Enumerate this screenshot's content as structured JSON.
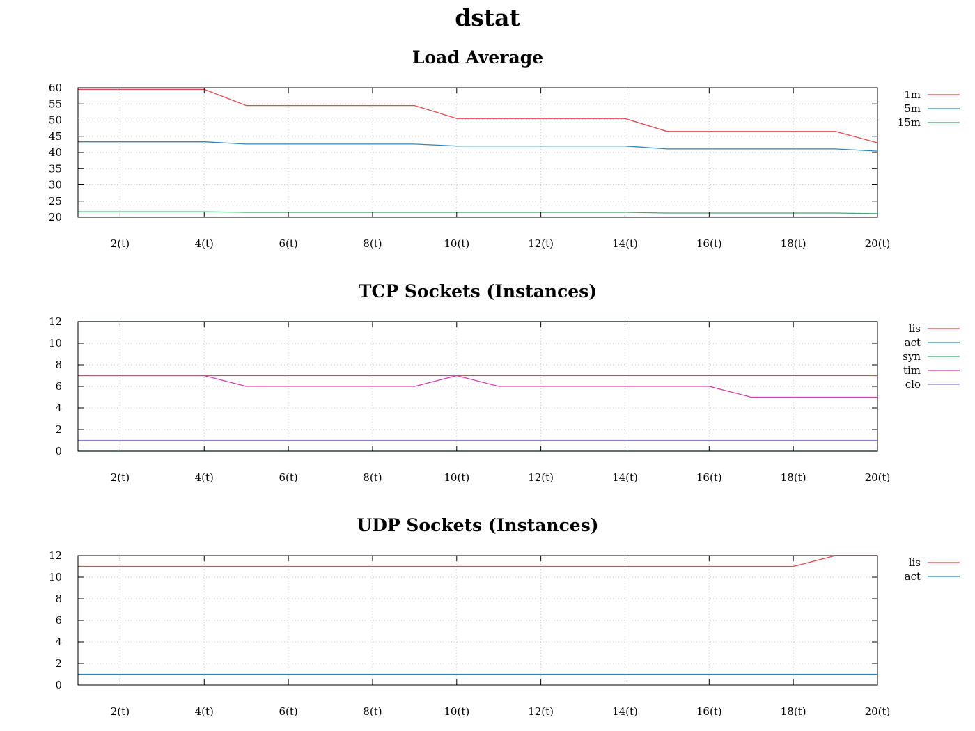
{
  "page": {
    "title": "dstat"
  },
  "colors": {
    "axis": "#000000",
    "grid": "#c8c8c8",
    "red": "#e8484b",
    "blue": "#2e86c1",
    "green": "#3fae68",
    "magenta": "#d63cac",
    "purple": "#8c7fd6",
    "dark_blue": "#1f4e8c",
    "dark_green": "#1e7a3a"
  },
  "chart_data": [
    {
      "type": "line",
      "title": "Load Average",
      "xlabel": "",
      "ylabel": "",
      "xlim": [
        1,
        20
      ],
      "ylim": [
        20,
        60
      ],
      "yticks": [
        20,
        25,
        30,
        35,
        40,
        45,
        50,
        55,
        60
      ],
      "xticks": [
        2,
        4,
        6,
        8,
        10,
        12,
        14,
        16,
        18,
        20
      ],
      "xtick_labels": [
        "2(t)",
        "4(t)",
        "6(t)",
        "8(t)",
        "10(t)",
        "12(t)",
        "14(t)",
        "16(t)",
        "18(t)",
        "20(t)"
      ],
      "ytick_labels": [
        "20",
        "25",
        "30",
        "35",
        "40",
        "45",
        "50",
        "55",
        "60"
      ],
      "grid": true,
      "legend_position": "right",
      "x": [
        1,
        2,
        3,
        4,
        5,
        6,
        7,
        8,
        9,
        10,
        11,
        12,
        13,
        14,
        15,
        16,
        17,
        18,
        19,
        20
      ],
      "series": [
        {
          "name": "1m",
          "color": "#e8484b",
          "values": [
            59.5,
            59.5,
            59.5,
            59.5,
            54.5,
            54.5,
            54.5,
            54.5,
            54.5,
            50.5,
            50.5,
            50.5,
            50.5,
            50.5,
            46.5,
            46.5,
            46.5,
            46.5,
            46.5,
            43
          ]
        },
        {
          "name": "5m",
          "color": "#2e86c1",
          "values": [
            43.3,
            43.3,
            43.3,
            43.3,
            42.6,
            42.6,
            42.6,
            42.6,
            42.6,
            42,
            42,
            42,
            42,
            42,
            41.1,
            41.1,
            41.1,
            41.1,
            41.1,
            40.4
          ]
        },
        {
          "name": "15m",
          "color": "#3fae68",
          "values": [
            21.7,
            21.7,
            21.7,
            21.7,
            21.5,
            21.5,
            21.5,
            21.5,
            21.5,
            21.5,
            21.5,
            21.5,
            21.5,
            21.5,
            21.3,
            21.3,
            21.3,
            21.3,
            21.3,
            21.1
          ]
        }
      ]
    },
    {
      "type": "line",
      "title": "TCP Sockets (Instances)",
      "xlabel": "",
      "ylabel": "",
      "xlim": [
        1,
        20
      ],
      "ylim": [
        0,
        12
      ],
      "yticks": [
        0,
        2,
        4,
        6,
        8,
        10,
        12
      ],
      "xticks": [
        2,
        4,
        6,
        8,
        10,
        12,
        14,
        16,
        18,
        20
      ],
      "xtick_labels": [
        "2(t)",
        "4(t)",
        "6(t)",
        "8(t)",
        "10(t)",
        "12(t)",
        "14(t)",
        "16(t)",
        "18(t)",
        "20(t)"
      ],
      "ytick_labels": [
        "0",
        "2",
        "4",
        "6",
        "8",
        "10",
        "12"
      ],
      "grid": true,
      "legend_position": "right",
      "x": [
        1,
        2,
        3,
        4,
        5,
        6,
        7,
        8,
        9,
        10,
        11,
        12,
        13,
        14,
        15,
        16,
        17,
        18,
        19,
        20
      ],
      "series": [
        {
          "name": "lis",
          "color": "#e8484b",
          "values": [
            7,
            7,
            7,
            7,
            7,
            7,
            7,
            7,
            7,
            7,
            7,
            7,
            7,
            7,
            7,
            7,
            7,
            7,
            7,
            7
          ]
        },
        {
          "name": "act",
          "color": "#2e86c1",
          "line_color": "#1f4e8c",
          "values": [
            12,
            12,
            12,
            12,
            12,
            12,
            12,
            12,
            12,
            12,
            12,
            12,
            12,
            12,
            12,
            12,
            12,
            12,
            12,
            12
          ]
        },
        {
          "name": "syn",
          "color": "#3fae68",
          "line_color": "#1e7a3a",
          "values": [
            0,
            0,
            0,
            0,
            0,
            0,
            0,
            0,
            0,
            0,
            0,
            0,
            0,
            0,
            0,
            0,
            0,
            0,
            0,
            0
          ]
        },
        {
          "name": "tim",
          "color": "#d63cac",
          "values": [
            7,
            7,
            7,
            7,
            6,
            6,
            6,
            6,
            6,
            7,
            6,
            6,
            6,
            6,
            6,
            6,
            5,
            5,
            5,
            5
          ]
        },
        {
          "name": "clo",
          "color": "#8c7fd6",
          "values": [
            1,
            1,
            1,
            1,
            1,
            1,
            1,
            1,
            1,
            1,
            1,
            1,
            1,
            1,
            1,
            1,
            1,
            1,
            1,
            1
          ]
        }
      ]
    },
    {
      "type": "line",
      "title": "UDP Sockets (Instances)",
      "xlabel": "",
      "ylabel": "",
      "xlim": [
        1,
        20
      ],
      "ylim": [
        0,
        12
      ],
      "yticks": [
        0,
        2,
        4,
        6,
        8,
        10,
        12
      ],
      "xticks": [
        2,
        4,
        6,
        8,
        10,
        12,
        14,
        16,
        18,
        20
      ],
      "xtick_labels": [
        "2(t)",
        "4(t)",
        "6(t)",
        "8(t)",
        "10(t)",
        "12(t)",
        "14(t)",
        "16(t)",
        "18(t)",
        "20(t)"
      ],
      "ytick_labels": [
        "0",
        "2",
        "4",
        "6",
        "8",
        "10",
        "12"
      ],
      "grid": true,
      "legend_position": "right",
      "x": [
        1,
        2,
        3,
        4,
        5,
        6,
        7,
        8,
        9,
        10,
        11,
        12,
        13,
        14,
        15,
        16,
        17,
        18,
        19,
        20
      ],
      "series": [
        {
          "name": "lis",
          "color": "#e8484b",
          "values": [
            11,
            11,
            11,
            11,
            11,
            11,
            11,
            11,
            11,
            11,
            11,
            11,
            11,
            11,
            11,
            11,
            11,
            11,
            12,
            12
          ]
        },
        {
          "name": "act",
          "color": "#2e86c1",
          "values": [
            1,
            1,
            1,
            1,
            1,
            1,
            1,
            1,
            1,
            1,
            1,
            1,
            1,
            1,
            1,
            1,
            1,
            1,
            1,
            1
          ]
        }
      ]
    }
  ]
}
